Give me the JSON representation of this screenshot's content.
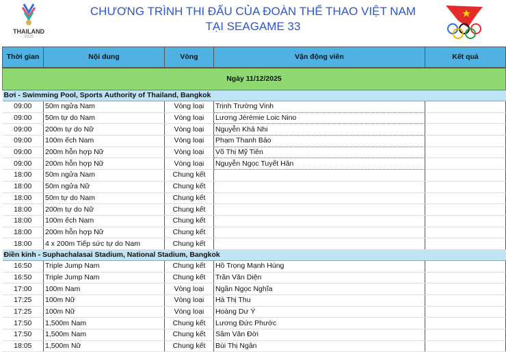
{
  "header": {
    "title_line1": "CHƯƠNG TRÌNH THI ĐẤU CỦA ĐOÀN THỂ THAO VIỆT NAM",
    "title_line2": "TẠI SEAGAME 33",
    "logo_left_text": "THAILAND",
    "logo_left_year": "2025"
  },
  "columns": [
    "Thời gian",
    "Nội dung",
    "Vòng",
    "Vận động viên",
    "Kết quả"
  ],
  "day_label": "Ngày 11/12/2025",
  "colors": {
    "header_bg": "#4fb2e2",
    "day_bg": "#8fd872",
    "section_bg": "#bfe4f6",
    "title": "#2f56c8"
  },
  "sections": [
    {
      "title": "Bơi - Swimming Pool, Sports Authority of Thailand, Bangkok",
      "rows": [
        {
          "time": "09:00",
          "event": "50m ngửa Nam",
          "round": "Vòng loại",
          "athlete": "Trịnh Trường Vinh",
          "result": ""
        },
        {
          "time": "09:00",
          "event": "50m tự do Nam",
          "round": "Vòng loại",
          "athlete": "Lương Jérémie Loic Nino",
          "result": ""
        },
        {
          "time": "09:00",
          "event": "200m tự do Nữ",
          "round": "Vòng loại",
          "athlete": "Nguyễn Khả Nhi",
          "result": ""
        },
        {
          "time": "09:00",
          "event": "100m ếch Nam",
          "round": "Vòng loại",
          "athlete": "Phạm Thanh Bảo",
          "result": ""
        },
        {
          "time": "09:00",
          "event": "200m hỗn hợp Nữ",
          "round": "Vòng loại",
          "athlete": "Võ Thị Mỹ Tiên",
          "result": ""
        },
        {
          "time": "09:00",
          "event": "200m hỗn hợp Nữ",
          "round": "Vòng loại",
          "athlete": "Nguyễn Ngọc Tuyết Hân",
          "result": ""
        },
        {
          "time": "18:00",
          "event": "50m ngửa Nam",
          "round": "Chung kết",
          "athlete": "",
          "result": ""
        },
        {
          "time": "18:00",
          "event": "50m ngửa Nữ",
          "round": "Chung kết",
          "athlete": "",
          "result": ""
        },
        {
          "time": "18:00",
          "event": "50m tự do Nam",
          "round": "Chung kết",
          "athlete": "",
          "result": ""
        },
        {
          "time": "18:00",
          "event": "200m tự do Nữ",
          "round": "Chung kết",
          "athlete": "",
          "result": ""
        },
        {
          "time": "18:00",
          "event": "100m ếch Nam",
          "round": "Chung kết",
          "athlete": "",
          "result": ""
        },
        {
          "time": "18:00",
          "event": "200m hỗn hợp Nữ",
          "round": "Chung kết",
          "athlete": "",
          "result": ""
        },
        {
          "time": "18:00",
          "event": "4 x 200m Tiếp sức tự do Nam",
          "round": "Chung kết",
          "athlete": "",
          "result": ""
        }
      ]
    },
    {
      "title": "Điền kinh - Suphachalasai Stadium, National Stadium, Bangkok",
      "rows": [
        {
          "time": "16:50",
          "event": "Triple Jump Nam",
          "round": "Chung kết",
          "athlete": "Hồ Trọng Mạnh Hùng",
          "result": ""
        },
        {
          "time": "16:50",
          "event": "Triple Jump Nam",
          "round": "Chung kết",
          "athlete": "Trần Văn Diện",
          "result": ""
        },
        {
          "time": "17:00",
          "event": "100m Nam",
          "round": "Vòng loại",
          "athlete": "Ngần Ngọc Nghĩa",
          "result": ""
        },
        {
          "time": "17:25",
          "event": "100m Nữ",
          "round": "Vòng loại",
          "athlete": "Hà Thị Thu",
          "result": ""
        },
        {
          "time": "17:25",
          "event": "100m Nữ",
          "round": "Vòng loại",
          "athlete": "Hoàng Dư Ý",
          "result": ""
        },
        {
          "time": "17:50",
          "event": "1,500m Nam",
          "round": "Chung kết",
          "athlete": "Lương Đức Phước",
          "result": ""
        },
        {
          "time": "17:50",
          "event": "1,500m Nam",
          "round": "Chung kết",
          "athlete": "Sầm Văn Đời",
          "result": ""
        },
        {
          "time": "18:05",
          "event": "1,500m Nữ",
          "round": "Chung kết",
          "athlete": "Bùi Thị Ngân",
          "result": ""
        }
      ]
    }
  ]
}
